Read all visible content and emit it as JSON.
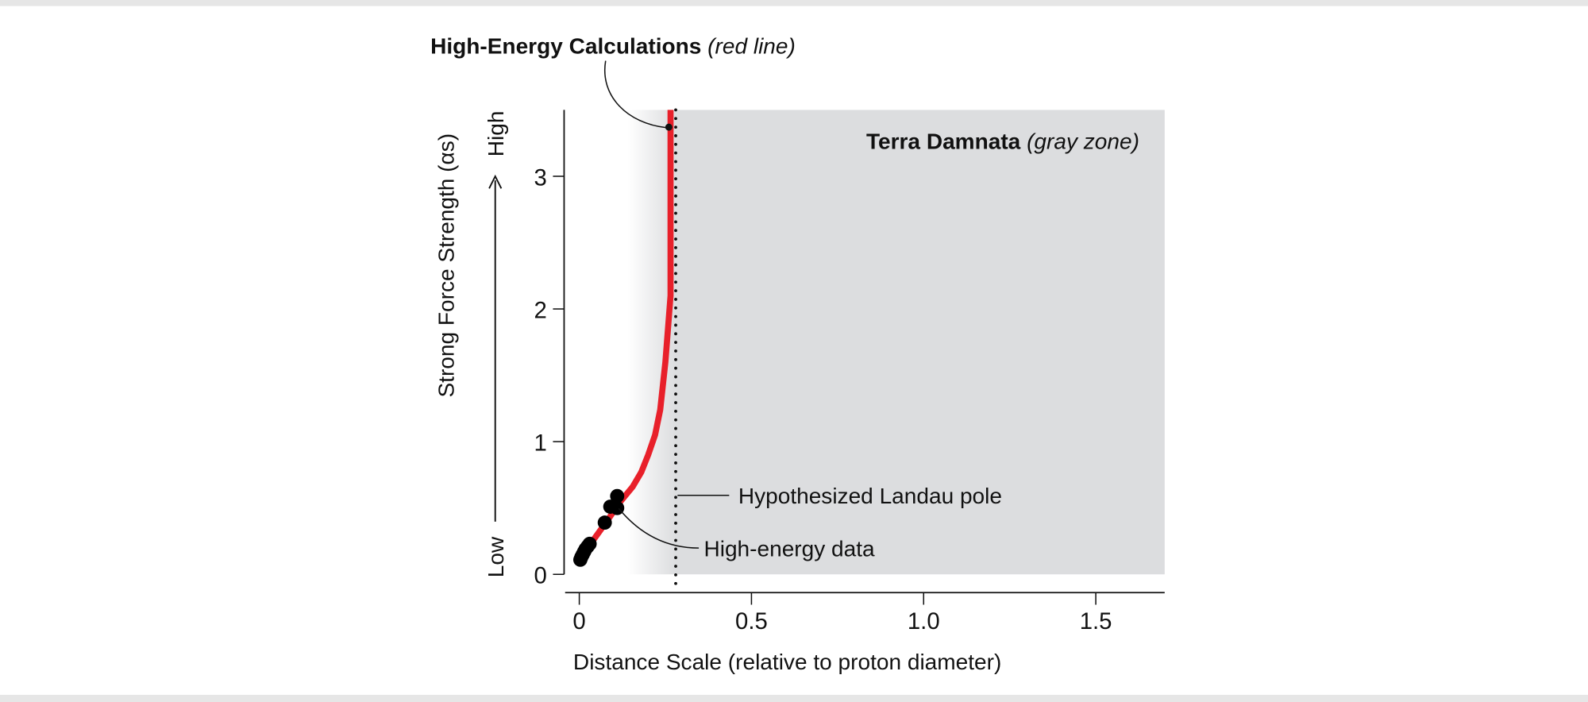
{
  "chart_data": {
    "type": "line",
    "title": "",
    "xlabel": "Distance Scale (relative to proton diameter)",
    "ylabel": "Strong Force Strength (αs)",
    "ylabel_low": "Low",
    "ylabel_high": "High",
    "xlim": [
      0,
      1.7
    ],
    "ylim": [
      0,
      3.5
    ],
    "xticks": [
      "0",
      "0.5",
      "1.0",
      "1.5"
    ],
    "xtick_values": [
      0,
      0.5,
      1.0,
      1.5
    ],
    "yticks": [
      "0",
      "1",
      "2",
      "3"
    ],
    "ytick_values": [
      0,
      1,
      2,
      3
    ],
    "grid": false,
    "series": [
      {
        "name": "High-Energy Calculations",
        "kind": "line",
        "color": "#e8202a",
        "x": [
          0.005,
          0.03,
          0.08,
          0.12,
          0.155,
          0.18,
          0.2,
          0.22,
          0.235,
          0.25,
          0.265,
          0.265
        ],
        "y": [
          0.09,
          0.22,
          0.4,
          0.55,
          0.66,
          0.77,
          0.9,
          1.05,
          1.24,
          1.6,
          2.1,
          3.5
        ]
      },
      {
        "name": "High-energy data",
        "kind": "scatter",
        "color": "#000000",
        "x": [
          0.003,
          0.006,
          0.01,
          0.014,
          0.018,
          0.024,
          0.03,
          0.074,
          0.09,
          0.11,
          0.11
        ],
        "y": [
          0.11,
          0.13,
          0.15,
          0.17,
          0.19,
          0.21,
          0.23,
          0.39,
          0.51,
          0.59,
          0.5
        ]
      }
    ],
    "gray_zone": {
      "x_start": 0.14,
      "x_full": 0.28,
      "x_end": 1.7,
      "color": "#dcdddf"
    },
    "landau_pole_x": 0.28,
    "annotations": {
      "calc_title": "High-Energy Calculations",
      "calc_sub": "(red line)",
      "calc_point": {
        "x": 0.26,
        "y": 3.37
      },
      "zone_title": "Terra Damnata",
      "zone_sub": "(gray zone)",
      "landau": "Hypothesized Landau pole",
      "data": "High-energy data"
    }
  }
}
